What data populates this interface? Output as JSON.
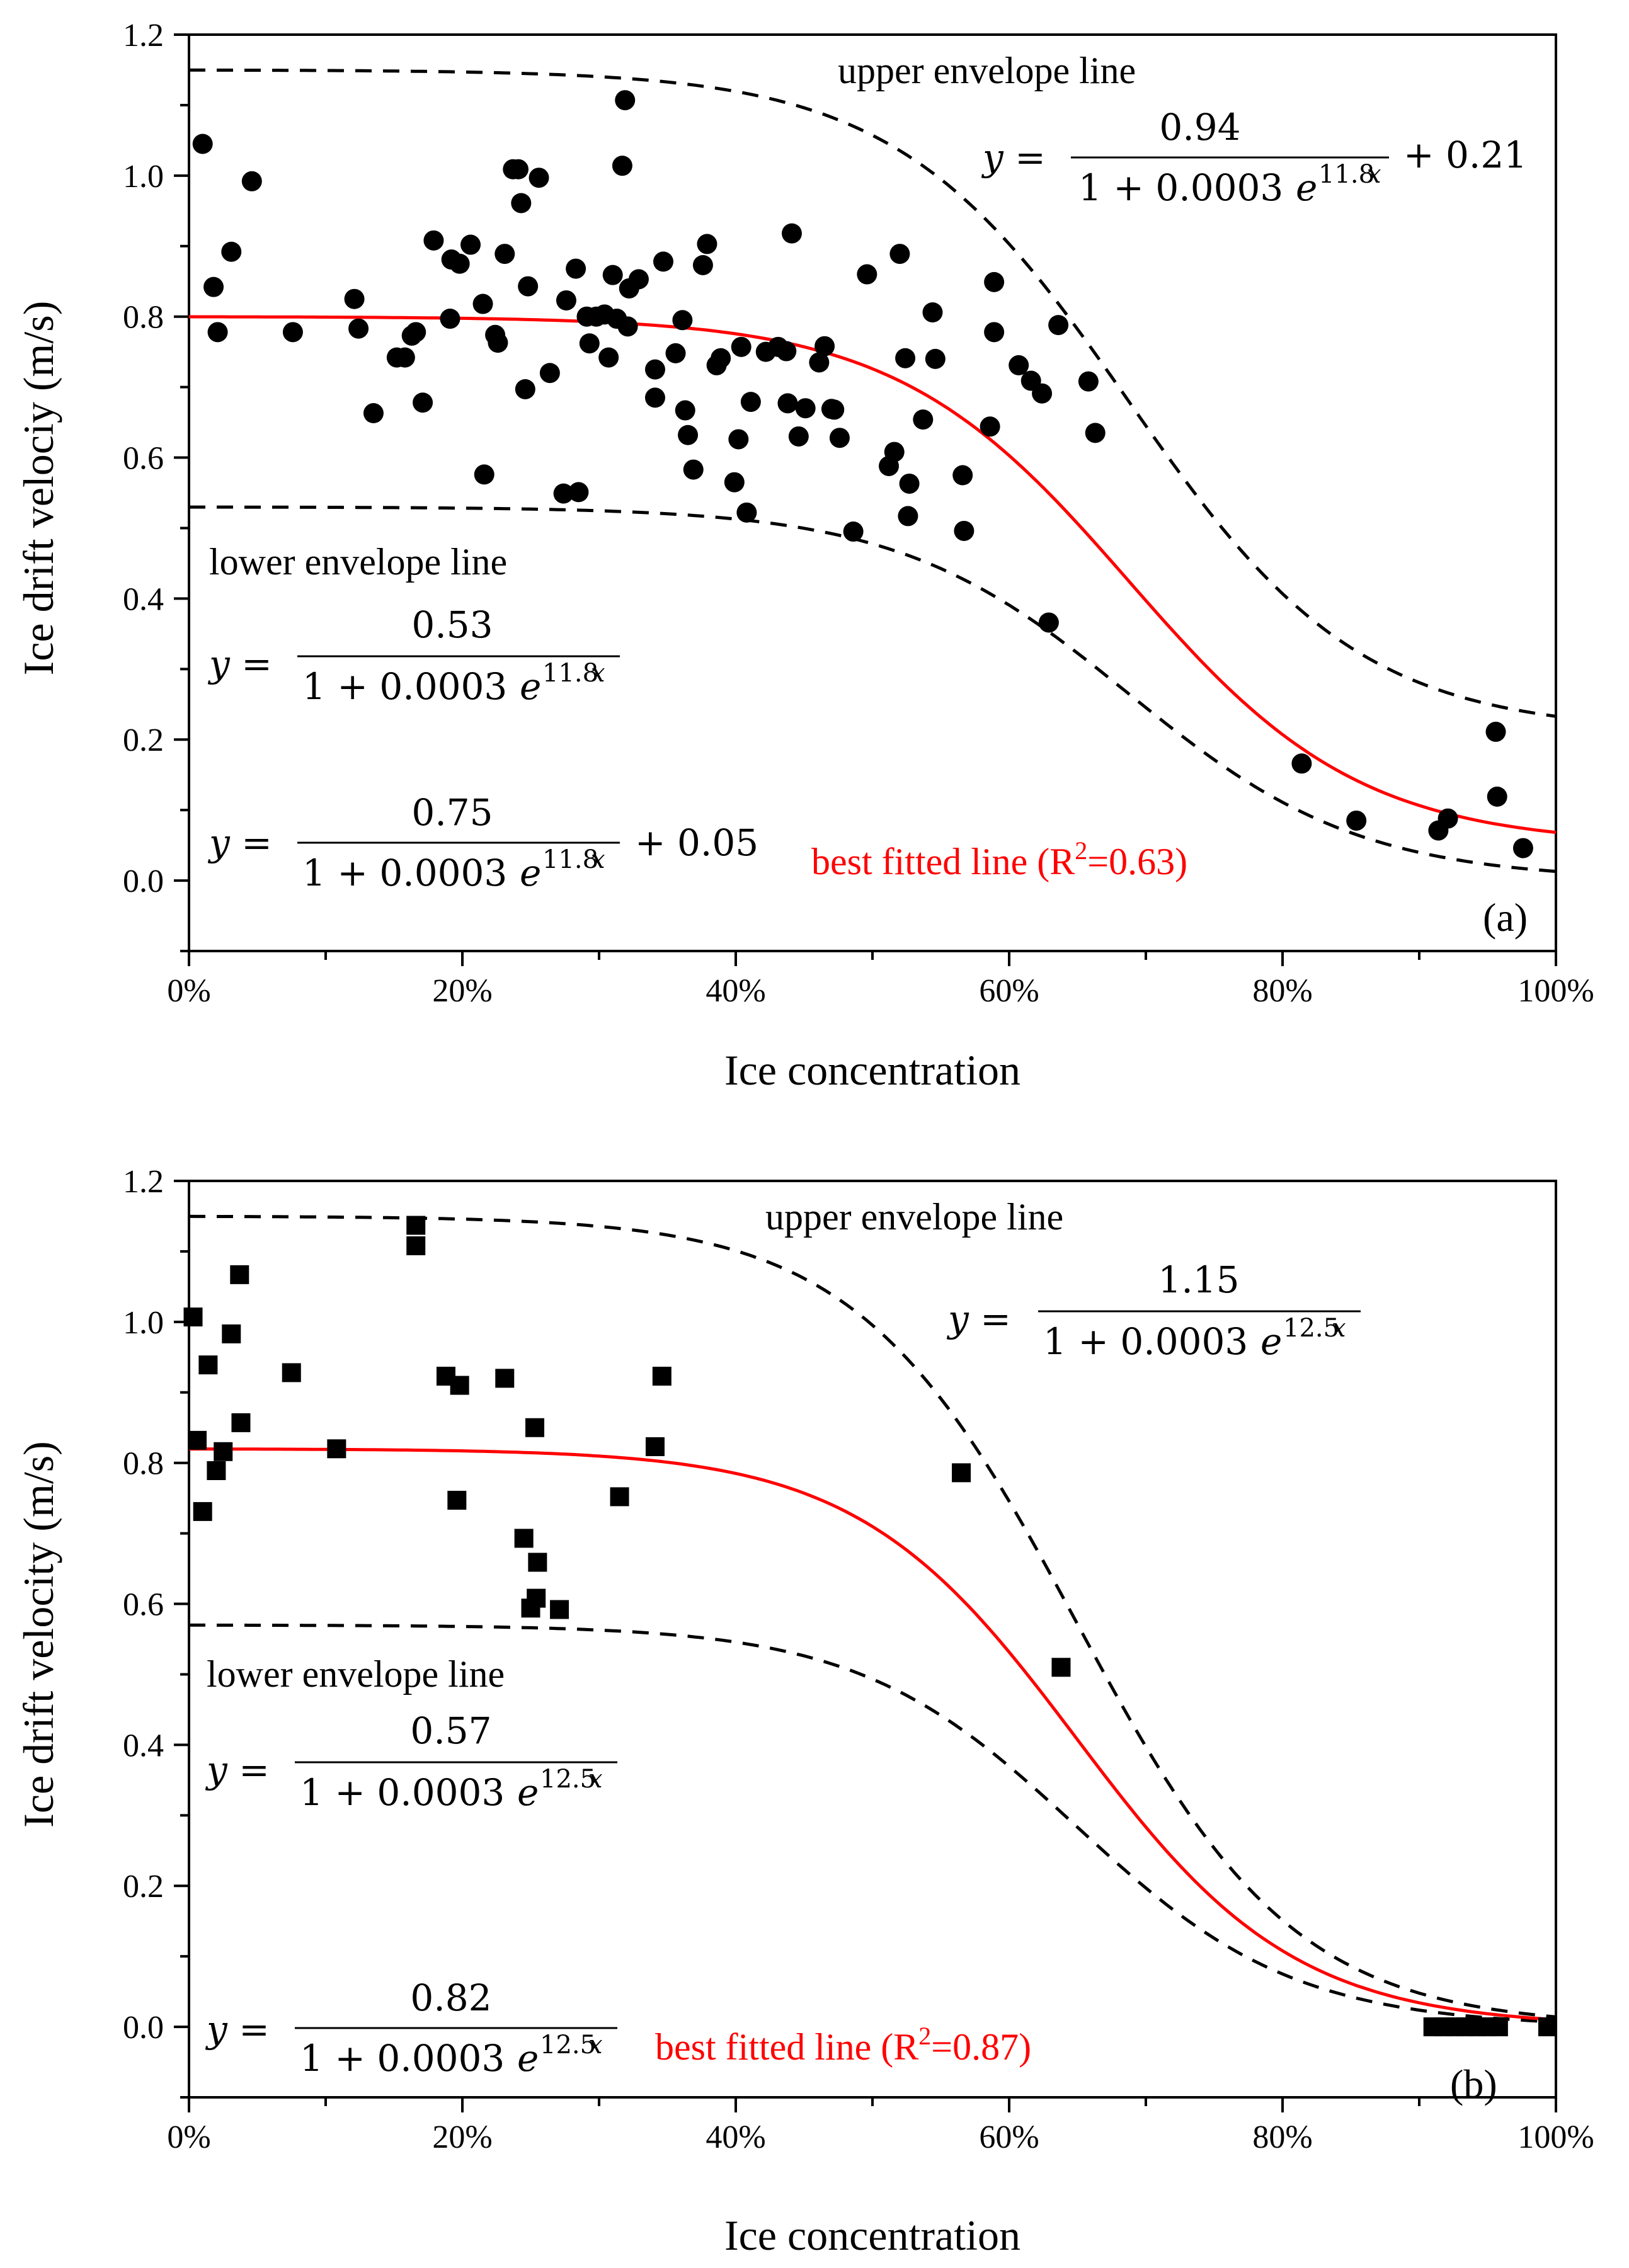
{
  "chart_data": [
    {
      "type": "scatter",
      "panel_label": "(a)",
      "xlabel": "Ice concentration",
      "ylabel": "Ice drift velociy (m/s)",
      "xlim": [
        0,
        100
      ],
      "ylim": [
        -0.1,
        1.2
      ],
      "x_ticks": [
        0,
        20,
        40,
        60,
        80,
        100
      ],
      "x_tick_labels": [
        "0%",
        "20%",
        "40%",
        "60%",
        "80%",
        "100%"
      ],
      "y_ticks": [
        0.0,
        0.2,
        0.4,
        0.6,
        0.8,
        1.0,
        1.2
      ],
      "y_tick_labels": [
        "0.0",
        "0.2",
        "0.4",
        "0.6",
        "0.8",
        "1.0",
        "1.2"
      ],
      "marker": "circle",
      "points": [
        [
          1.0,
          1.045
        ],
        [
          1.8,
          0.842
        ],
        [
          2.1,
          0.778
        ],
        [
          3.1,
          0.892
        ],
        [
          4.6,
          0.992
        ],
        [
          7.6,
          0.778
        ],
        [
          12.1,
          0.825
        ],
        [
          12.4,
          0.783
        ],
        [
          13.5,
          0.663
        ],
        [
          15.2,
          0.742
        ],
        [
          15.8,
          0.742
        ],
        [
          16.3,
          0.773
        ],
        [
          16.6,
          0.778
        ],
        [
          17.1,
          0.678
        ],
        [
          17.9,
          0.908
        ],
        [
          19.1,
          0.797
        ],
        [
          19.2,
          0.881
        ],
        [
          19.8,
          0.875
        ],
        [
          20.6,
          0.902
        ],
        [
          21.5,
          0.818
        ],
        [
          21.6,
          0.576
        ],
        [
          22.4,
          0.774
        ],
        [
          22.6,
          0.763
        ],
        [
          23.1,
          0.889
        ],
        [
          23.7,
          1.009
        ],
        [
          24.1,
          1.009
        ],
        [
          24.3,
          0.961
        ],
        [
          24.6,
          0.697
        ],
        [
          24.8,
          0.843
        ],
        [
          25.6,
          0.997
        ],
        [
          26.4,
          0.72
        ],
        [
          27.4,
          0.549
        ],
        [
          27.6,
          0.823
        ],
        [
          28.3,
          0.868
        ],
        [
          28.5,
          0.551
        ],
        [
          29.1,
          0.8
        ],
        [
          29.3,
          0.762
        ],
        [
          29.8,
          0.8
        ],
        [
          30.4,
          0.803
        ],
        [
          30.7,
          0.742
        ],
        [
          31.0,
          0.859
        ],
        [
          31.3,
          0.797
        ],
        [
          31.7,
          1.014
        ],
        [
          31.9,
          1.107
        ],
        [
          32.2,
          0.84
        ],
        [
          32.1,
          0.786
        ],
        [
          32.9,
          0.853
        ],
        [
          34.1,
          0.725
        ],
        [
          34.1,
          0.685
        ],
        [
          34.7,
          0.878
        ],
        [
          35.6,
          0.748
        ],
        [
          36.1,
          0.795
        ],
        [
          36.3,
          0.667
        ],
        [
          36.5,
          0.632
        ],
        [
          36.9,
          0.583
        ],
        [
          37.6,
          0.873
        ],
        [
          37.9,
          0.903
        ],
        [
          38.6,
          0.731
        ],
        [
          38.9,
          0.741
        ],
        [
          39.9,
          0.565
        ],
        [
          40.2,
          0.626
        ],
        [
          40.4,
          0.757
        ],
        [
          40.8,
          0.522
        ],
        [
          41.1,
          0.679
        ],
        [
          42.2,
          0.75
        ],
        [
          43.1,
          0.757
        ],
        [
          43.7,
          0.751
        ],
        [
          43.8,
          0.677
        ],
        [
          44.1,
          0.918
        ],
        [
          44.6,
          0.63
        ],
        [
          45.1,
          0.67
        ],
        [
          46.1,
          0.735
        ],
        [
          46.5,
          0.758
        ],
        [
          47.0,
          0.669
        ],
        [
          47.2,
          0.668
        ],
        [
          47.6,
          0.628
        ],
        [
          48.6,
          0.495
        ],
        [
          49.6,
          0.86
        ],
        [
          51.2,
          0.588
        ],
        [
          51.6,
          0.608
        ],
        [
          52.0,
          0.889
        ],
        [
          52.4,
          0.741
        ],
        [
          52.6,
          0.517
        ],
        [
          52.7,
          0.563
        ],
        [
          53.7,
          0.654
        ],
        [
          54.4,
          0.806
        ],
        [
          54.6,
          0.74
        ],
        [
          56.6,
          0.575
        ],
        [
          56.7,
          0.496
        ],
        [
          58.6,
          0.644
        ],
        [
          58.9,
          0.778
        ],
        [
          58.9,
          0.849
        ],
        [
          60.7,
          0.731
        ],
        [
          61.6,
          0.709
        ],
        [
          62.4,
          0.691
        ],
        [
          62.9,
          0.366
        ],
        [
          63.6,
          0.788
        ],
        [
          65.8,
          0.708
        ],
        [
          66.3,
          0.635
        ],
        [
          81.4,
          0.166
        ],
        [
          85.4,
          0.085
        ],
        [
          91.4,
          0.071
        ],
        [
          92.1,
          0.088
        ],
        [
          95.6,
          0.211
        ],
        [
          95.7,
          0.119
        ],
        [
          97.6,
          0.046
        ]
      ],
      "curves": [
        {
          "name": "upper envelope line",
          "style": "dashed",
          "a": 0.94,
          "k": 11.8,
          "c": 0.21
        },
        {
          "name": "lower envelope line",
          "style": "dashed",
          "a": 0.53,
          "k": 11.8,
          "c": 0
        },
        {
          "name": "best fitted line (R2=0.63)",
          "style": "solid",
          "color": "#ff0000",
          "a": 0.75,
          "k": 11.8,
          "c": 0.05
        }
      ],
      "annotations": {
        "upper_label": "upper envelope line",
        "upper_num": "0.94",
        "upper_den_base": "1 + 0.0003",
        "upper_exp": "11.8",
        "upper_const": "+ 0.21",
        "lower_label": "lower envelope line",
        "lower_num": "0.53",
        "lower_den_base": "1 + 0.0003",
        "lower_exp": "11.8",
        "best_num": "0.75",
        "best_den_base": "1 + 0.0003",
        "best_exp": "11.8",
        "best_const": "+ 0.05",
        "best_label_main": "best fitted line (R",
        "best_label_sup": "2",
        "best_label_end": "=0.63)",
        "y_eq": "y =",
        "e_var": "e",
        "exp_var": "x"
      }
    },
    {
      "type": "scatter",
      "panel_label": "(b)",
      "xlabel": "Ice concentration",
      "ylabel": "Ice drift velocity (m/s)",
      "xlim": [
        0,
        100
      ],
      "ylim": [
        -0.1,
        1.2
      ],
      "x_ticks": [
        0,
        20,
        40,
        60,
        80,
        100
      ],
      "x_tick_labels": [
        "0%",
        "20%",
        "40%",
        "60%",
        "80%",
        "100%"
      ],
      "y_ticks": [
        0.0,
        0.2,
        0.4,
        0.6,
        0.8,
        1.0,
        1.2
      ],
      "y_tick_labels": [
        "0.0",
        "0.2",
        "0.4",
        "0.6",
        "0.8",
        "1.0",
        "1.2"
      ],
      "marker": "square",
      "points": [
        [
          0.3,
          1.007
        ],
        [
          0.6,
          0.832
        ],
        [
          1.0,
          0.731
        ],
        [
          1.4,
          0.939
        ],
        [
          2.0,
          0.789
        ],
        [
          2.5,
          0.816
        ],
        [
          3.1,
          0.983
        ],
        [
          3.7,
          1.067
        ],
        [
          3.8,
          0.857
        ],
        [
          7.5,
          0.928
        ],
        [
          10.8,
          0.82
        ],
        [
          16.6,
          1.137
        ],
        [
          16.6,
          1.108
        ],
        [
          18.8,
          0.923
        ],
        [
          19.6,
          0.747
        ],
        [
          19.8,
          0.91
        ],
        [
          23.1,
          0.92
        ],
        [
          24.5,
          0.693
        ],
        [
          25.0,
          0.594
        ],
        [
          25.3,
          0.85
        ],
        [
          25.4,
          0.608
        ],
        [
          25.5,
          0.659
        ],
        [
          27.1,
          0.592
        ],
        [
          31.5,
          0.752
        ],
        [
          34.1,
          0.823
        ],
        [
          34.6,
          0.923
        ],
        [
          56.5,
          0.786
        ],
        [
          63.8,
          0.51
        ],
        [
          91.0,
          0.0
        ],
        [
          91.8,
          0.0
        ],
        [
          92.6,
          0.0
        ],
        [
          93.4,
          0.0
        ],
        [
          94.2,
          0.0
        ],
        [
          95.0,
          0.0
        ],
        [
          95.8,
          0.0
        ],
        [
          99.4,
          0.0
        ]
      ],
      "curves": [
        {
          "name": "upper envelope line",
          "style": "dashed",
          "a": 1.15,
          "k": 12.5,
          "c": 0
        },
        {
          "name": "lower envelope line",
          "style": "dashed",
          "a": 0.57,
          "k": 12.5,
          "c": 0
        },
        {
          "name": "best fitted line (R2=0.87)",
          "style": "solid",
          "color": "#ff0000",
          "a": 0.82,
          "k": 12.5,
          "c": 0
        }
      ],
      "annotations": {
        "upper_label": "upper envelope line",
        "upper_num": "1.15",
        "upper_den_base": "1 + 0.0003",
        "upper_exp": "12.5",
        "lower_label": "lower envelope line",
        "lower_num": "0.57",
        "lower_den_base": "1 + 0.0003",
        "lower_exp": "12.5",
        "best_num": "0.82",
        "best_den_base": "1 + 0.0003",
        "best_exp": "12.5",
        "best_label_main": "best fitted line (R",
        "best_label_sup": "2",
        "best_label_end": "=0.87)",
        "y_eq": "y =",
        "e_var": "e",
        "exp_var": "x"
      }
    }
  ]
}
